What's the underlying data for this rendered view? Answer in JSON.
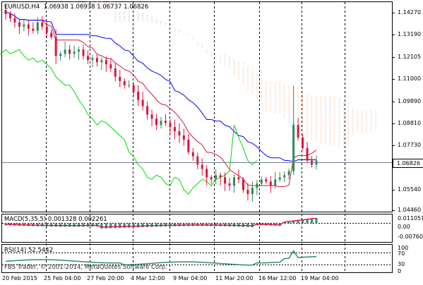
{
  "main_panel": {
    "title": "EURUSD,H4",
    "ohlc": "1.06938 1.06938 1.06737 1.06826",
    "current_price": "1.06826",
    "y_ticks": [
      "1.14270",
      "1.13190",
      "1.12105",
      "1.11000",
      "1.09890",
      "1.08810",
      "1.07730",
      "1.06826",
      "1.05540",
      "1.04460"
    ]
  },
  "macd_panel": {
    "label": "MACD(5,35,5) 0.001328 0.002261",
    "y_ticks": [
      "0.011051",
      "0.00",
      "-0.007607"
    ]
  },
  "rsi_panel": {
    "label": "RSI(14) 52.5442",
    "watermark": "FBS Trader, © 2001-2014, MetaQuotes Software Corp.",
    "y_ticks": [
      "100",
      "70",
      "30",
      "0"
    ]
  },
  "x_axis": {
    "labels": [
      "20 Feb 2015",
      "25 Feb 04:00",
      "27 Feb 20:00",
      "4 Mar 12:00",
      "9 Mar 04:00",
      "11 Mar 20:00",
      "16 Mar 12:00",
      "19 Mar 04:00"
    ]
  },
  "colors": {
    "bull_candle": "#2e8b57",
    "bear_candle": "#dc143c",
    "tenkan": "#dc143c",
    "kijun": "#0000ff",
    "chikou": "#00dd00",
    "cloud_up": "#c080c0",
    "cloud_down": "#f0a070",
    "macd_hist": "#2e8b7a",
    "macd_signal": "#dc143c",
    "rsi_line": "#2e8b7a"
  },
  "chart_data": {
    "type": "candlestick",
    "symbol": "EURUSD",
    "timeframe": "H4",
    "ylim": [
      1.0436,
      1.1437
    ],
    "candles_close_approx": [
      1.138,
      1.136,
      1.134,
      1.132,
      1.133,
      1.131,
      1.13,
      1.134,
      1.132,
      1.129,
      1.127,
      1.118,
      1.119,
      1.121,
      1.119,
      1.12,
      1.121,
      1.118,
      1.116,
      1.117,
      1.115,
      1.116,
      1.114,
      1.112,
      1.108,
      1.106,
      1.104,
      1.104,
      1.101,
      1.097,
      1.094,
      1.09,
      1.088,
      1.085,
      1.087,
      1.086,
      1.084,
      1.082,
      1.08,
      1.078,
      1.072,
      1.07,
      1.066,
      1.064,
      1.06,
      1.059,
      1.061,
      1.06,
      1.057,
      1.056,
      1.06,
      1.059,
      1.054,
      1.052,
      1.055,
      1.057,
      1.059,
      1.058,
      1.056,
      1.059,
      1.06,
      1.061,
      1.063,
      1.085,
      1.079,
      1.074,
      1.068,
      1.066,
      1.068
    ],
    "macd_last": 0.001328,
    "macd_signal_last": 0.002261,
    "rsi_last": 52.5442
  }
}
